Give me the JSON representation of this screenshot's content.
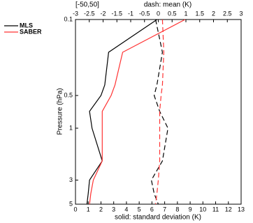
{
  "chart_data": {
    "type": "line",
    "top_range_label": "[-50,50]",
    "x2_label": "dash: mean (K)",
    "x_label": "solid: standard deviation (K)",
    "y_label": "Pressure (hPa)",
    "y": [
      0.1,
      0.2,
      0.4,
      0.5,
      0.7,
      1,
      2,
      3,
      4,
      5
    ],
    "ylim": [
      5,
      0.1
    ],
    "yticks": [
      0.1,
      0.5,
      1,
      3,
      5
    ],
    "ylog": true,
    "xlim": [
      0,
      13
    ],
    "xticks": [
      0,
      1,
      2,
      3,
      4,
      5,
      6,
      7,
      8,
      9,
      10,
      11,
      12,
      13
    ],
    "x2lim": [
      -3,
      3
    ],
    "x2ticks": [
      -3,
      -2.5,
      -2,
      -1.5,
      -1,
      -0.5,
      0,
      0.5,
      1,
      1.5,
      2,
      2.5,
      3
    ],
    "series": [
      {
        "name": "MLS",
        "color": "#000000",
        "std": [
          6.4,
          2.6,
          2.3,
          2.0,
          1.1,
          1.3,
          2.1,
          1.1,
          1.0,
          0.9
        ],
        "mean": [
          -0.1,
          0.15,
          -0.05,
          -0.15,
          0.05,
          0.35,
          0.15,
          -0.25,
          -0.15,
          0
        ]
      },
      {
        "name": "SABER",
        "color": "#ff3333",
        "std": [
          8.6,
          3.7,
          3.1,
          2.8,
          2.1,
          2.1,
          2.1,
          1.4,
          1.2,
          1.1
        ],
        "mean": [
          0.15,
          0.2,
          0.15,
          0.1,
          0.05,
          0.05,
          0.05,
          0,
          -0.05,
          -0.1
        ]
      }
    ]
  }
}
